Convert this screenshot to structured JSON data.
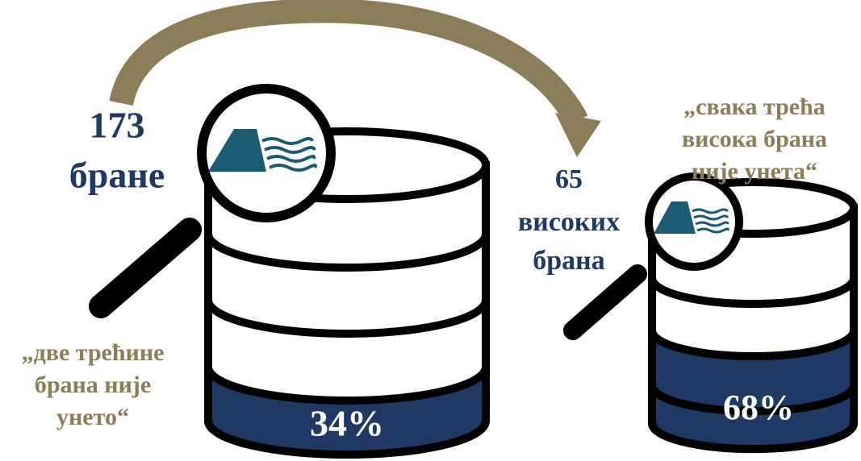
{
  "left": {
    "count": "173",
    "label": "бране",
    "quote": [
      "„две трећине",
      "брана није",
      "унето“"
    ],
    "percent": "34%"
  },
  "right": {
    "count": "65",
    "label": [
      "високих",
      "брана"
    ],
    "quote": [
      "„свака трећа",
      "висока брана",
      "није унета“"
    ],
    "percent": "68%"
  }
}
